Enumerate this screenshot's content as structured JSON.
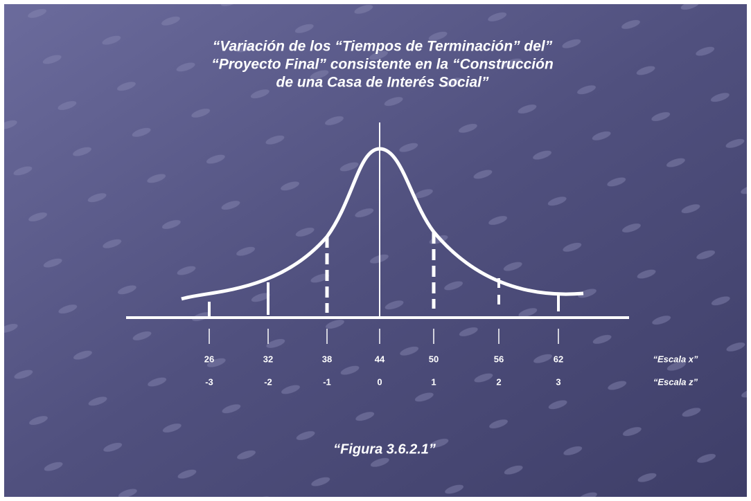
{
  "title": [
    "“Variación de los “Tiempos de Terminación” del”",
    "“Proyecto Final” consistente en la “Construcción",
    "de una Casa de Interés Social”"
  ],
  "scales": [
    {
      "name": "“Escala x”",
      "ticks": [
        "26",
        "32",
        "38",
        "44",
        "50",
        "56",
        "62"
      ]
    },
    {
      "name": "“Escala z”",
      "ticks": [
        "-3",
        "-2",
        "-1",
        "0",
        "1",
        "2",
        "3"
      ]
    }
  ],
  "caption": "“Figura 3.6.2.1”"
}
